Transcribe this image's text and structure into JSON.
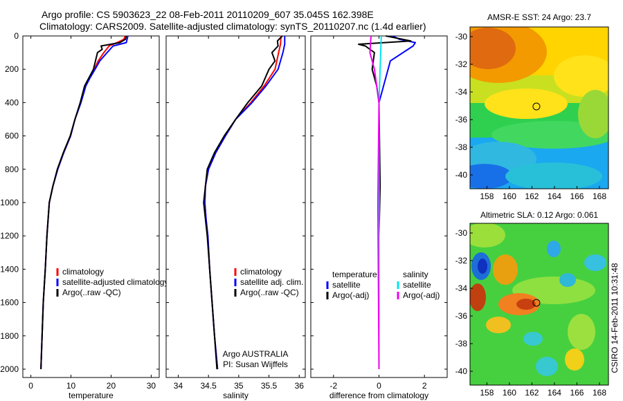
{
  "header": {
    "line1": "Argo profile: CS 5903623_22 08-Feb-2011 20110209_607 35.045S 162.398E",
    "line2": "Climatology: CARS2009. Satellite-adjusted climatology: synTS_20110207.nc (1.4d earlier)"
  },
  "side_label": "CSIRO 14-Feb-2011 10:31:48",
  "colors": {
    "climatology": "#ff0000",
    "satellite": "#0000ff",
    "argo": "#000000",
    "satellite_salinity": "#00e5ee",
    "argo_salinity_adj": "#ee00ee"
  },
  "chart_data": [
    {
      "type": "line",
      "xlabel": "temperature",
      "xlim": [
        -2,
        32
      ],
      "ylim": [
        0,
        2050
      ],
      "y_inverted": true,
      "xticks": [
        0,
        10,
        20,
        30
      ],
      "yticks": [
        0,
        200,
        400,
        600,
        800,
        1000,
        1200,
        1400,
        1600,
        1800,
        2000
      ],
      "series": [
        {
          "name": "climatology",
          "color": "#ff0000",
          "points": [
            [
              23.5,
              0
            ],
            [
              23.2,
              20
            ],
            [
              21.5,
              40
            ],
            [
              19.5,
              60
            ],
            [
              18.2,
              100
            ],
            [
              16.8,
              150
            ],
            [
              15.8,
              200
            ],
            [
              14.6,
              250
            ],
            [
              13.6,
              300
            ],
            [
              12.4,
              400
            ],
            [
              11.0,
              500
            ],
            [
              9.9,
              600
            ],
            [
              8.2,
              700
            ],
            [
              6.7,
              800
            ],
            [
              5.5,
              900
            ],
            [
              4.6,
              1000
            ],
            [
              4.0,
              1200
            ],
            [
              3.6,
              1400
            ],
            [
              3.1,
              1600
            ],
            [
              2.8,
              1800
            ],
            [
              2.5,
              2000
            ]
          ]
        },
        {
          "name": "satellite-adjusted climatology",
          "color": "#0000ff",
          "points": [
            [
              24.2,
              0
            ],
            [
              24.0,
              20
            ],
            [
              23.8,
              40
            ],
            [
              20.5,
              60
            ],
            [
              19.0,
              100
            ],
            [
              17.2,
              150
            ],
            [
              16.0,
              200
            ],
            [
              14.8,
              250
            ],
            [
              13.7,
              300
            ],
            [
              12.5,
              400
            ],
            [
              11.0,
              500
            ],
            [
              9.9,
              600
            ],
            [
              8.2,
              700
            ],
            [
              6.7,
              800
            ],
            [
              5.5,
              900
            ],
            [
              4.6,
              1000
            ],
            [
              4.0,
              1200
            ],
            [
              3.6,
              1400
            ],
            [
              3.1,
              1600
            ],
            [
              2.8,
              1800
            ],
            [
              2.5,
              2000
            ]
          ]
        },
        {
          "name": "Argo(..raw -QC)",
          "color": "#000000",
          "points": [
            [
              23.8,
              0
            ],
            [
              23.6,
              20
            ],
            [
              22.2,
              40
            ],
            [
              17.5,
              60
            ],
            [
              17.8,
              80
            ],
            [
              16.6,
              100
            ],
            [
              15.6,
              200
            ],
            [
              14.5,
              250
            ],
            [
              13.4,
              300
            ],
            [
              12.3,
              400
            ],
            [
              11.0,
              500
            ],
            [
              9.8,
              600
            ],
            [
              8.1,
              700
            ],
            [
              6.6,
              800
            ],
            [
              5.5,
              900
            ],
            [
              4.6,
              1000
            ],
            [
              4.0,
              1200
            ],
            [
              3.6,
              1400
            ],
            [
              3.1,
              1600
            ],
            [
              2.8,
              1800
            ],
            [
              2.5,
              2000
            ]
          ]
        }
      ],
      "legend": {
        "placement": "lower-right",
        "entries": [
          {
            "label": "climatology",
            "color": "#ff0000"
          },
          {
            "label": "satellite-adjusted climatology",
            "color": "#0000ff"
          },
          {
            "label": "Argo(..raw -QC)",
            "color": "#000000"
          }
        ]
      }
    },
    {
      "type": "line",
      "xlabel": "salinity",
      "xlim": [
        33.8,
        36.1
      ],
      "ylim": [
        0,
        2050
      ],
      "y_inverted": true,
      "xticks": [
        34,
        34.5,
        35,
        35.5,
        36
      ],
      "series": [
        {
          "name": "climatology",
          "color": "#ff0000",
          "points": [
            [
              35.7,
              0
            ],
            [
              35.69,
              50
            ],
            [
              35.66,
              100
            ],
            [
              35.6,
              200
            ],
            [
              35.42,
              300
            ],
            [
              35.2,
              400
            ],
            [
              34.95,
              500
            ],
            [
              34.78,
              600
            ],
            [
              34.62,
              700
            ],
            [
              34.5,
              800
            ],
            [
              34.45,
              900
            ],
            [
              34.44,
              1000
            ],
            [
              34.46,
              1100
            ],
            [
              34.49,
              1200
            ],
            [
              34.52,
              1400
            ],
            [
              34.56,
              1600
            ],
            [
              34.6,
              1800
            ],
            [
              34.65,
              2000
            ]
          ]
        },
        {
          "name": "satellite adj. clim.",
          "color": "#0000ff",
          "points": [
            [
              35.76,
              0
            ],
            [
              35.76,
              50
            ],
            [
              35.73,
              100
            ],
            [
              35.65,
              200
            ],
            [
              35.45,
              300
            ],
            [
              35.22,
              400
            ],
            [
              34.95,
              500
            ],
            [
              34.78,
              600
            ],
            [
              34.62,
              700
            ],
            [
              34.5,
              800
            ],
            [
              34.45,
              900
            ],
            [
              34.44,
              1000
            ],
            [
              34.46,
              1100
            ],
            [
              34.49,
              1200
            ],
            [
              34.52,
              1400
            ],
            [
              34.56,
              1600
            ],
            [
              34.6,
              1800
            ],
            [
              34.65,
              2000
            ]
          ]
        },
        {
          "name": "Argo(..raw -QC)",
          "color": "#000000",
          "points": [
            [
              35.72,
              0
            ],
            [
              35.64,
              30
            ],
            [
              35.65,
              60
            ],
            [
              35.55,
              100
            ],
            [
              35.6,
              150
            ],
            [
              35.5,
              200
            ],
            [
              35.38,
              300
            ],
            [
              35.15,
              400
            ],
            [
              34.95,
              500
            ],
            [
              34.76,
              600
            ],
            [
              34.6,
              700
            ],
            [
              34.48,
              800
            ],
            [
              34.45,
              900
            ],
            [
              34.42,
              1000
            ],
            [
              34.45,
              1100
            ],
            [
              34.48,
              1200
            ],
            [
              34.52,
              1400
            ],
            [
              34.56,
              1600
            ],
            [
              34.6,
              1800
            ],
            [
              34.64,
              2000
            ]
          ]
        }
      ],
      "legend": {
        "placement": "lower-right",
        "entries": [
          {
            "label": "climatology",
            "color": "#ff0000"
          },
          {
            "label": "satellite adj. clim.",
            "color": "#0000ff"
          },
          {
            "label": "Argo(..raw -QC)",
            "color": "#000000"
          }
        ]
      },
      "annotation": {
        "line1": "Argo AUSTRALIA",
        "line2": "PI: Susan Wijffels"
      }
    },
    {
      "type": "line",
      "xlabel": "difference from climatology",
      "xlim": [
        -3,
        3
      ],
      "ylim": [
        0,
        2050
      ],
      "y_inverted": true,
      "xticks": [
        -2,
        0,
        2
      ],
      "series": [
        {
          "name": "satellite",
          "group": "temperature",
          "color": "#0000ff",
          "points": [
            [
              0.6,
              0
            ],
            [
              0.9,
              20
            ],
            [
              1.6,
              40
            ],
            [
              1.5,
              60
            ],
            [
              0.5,
              150
            ],
            [
              0.2,
              300
            ],
            [
              0,
              400
            ],
            [
              0,
              2000
            ]
          ]
        },
        {
          "name": "Argo(-adj)",
          "group": "temperature",
          "color": "#000000",
          "points": [
            [
              0.3,
              0
            ],
            [
              1.4,
              30
            ],
            [
              -0.9,
              50
            ],
            [
              -0.6,
              60
            ],
            [
              -0.2,
              100
            ],
            [
              -0.3,
              200
            ],
            [
              -0.1,
              300
            ],
            [
              0,
              400
            ],
            [
              0.05,
              900
            ],
            [
              0,
              1200
            ],
            [
              0,
              2000
            ]
          ]
        },
        {
          "name": "satellite",
          "group": "salinity",
          "color": "#00e5ee",
          "points": [
            [
              0.1,
              0
            ],
            [
              0.05,
              200
            ],
            [
              0,
              400
            ],
            [
              0,
              2000
            ]
          ]
        },
        {
          "name": "Argo(-adj)",
          "group": "salinity",
          "color": "#ee00ee",
          "points": [
            [
              -0.35,
              0
            ],
            [
              -0.4,
              100
            ],
            [
              -0.2,
              200
            ],
            [
              0,
              400
            ],
            [
              -0.05,
              1000
            ],
            [
              0,
              2000
            ]
          ]
        }
      ],
      "legend": {
        "placement": "lower-center",
        "groups": [
          {
            "title": "temperature",
            "entries": [
              {
                "label": "satellite",
                "color": "#0000ff"
              },
              {
                "label": "Argo(-adj)",
                "color": "#000000"
              }
            ]
          },
          {
            "title": "salinity",
            "entries": [
              {
                "label": "satellite",
                "color": "#00e5ee"
              },
              {
                "label": "Argo(-adj)",
                "color": "#ee00ee"
              }
            ]
          }
        ]
      }
    },
    {
      "type": "heatmap",
      "title": "AMSR-E SST: 24 Argo: 23.7",
      "xticks": [
        158,
        160,
        162,
        164,
        166,
        168
      ],
      "yticks": [
        -30,
        -32,
        -34,
        -36,
        -38,
        -40
      ],
      "xlim": [
        156.5,
        168.8
      ],
      "ylim": [
        -41,
        -29.3
      ],
      "marker": {
        "lon": 162.4,
        "lat": -35.05
      }
    },
    {
      "type": "heatmap",
      "title": "Altimetric SLA: 0.12 Argo: 0.061",
      "xticks": [
        158,
        160,
        162,
        164,
        166,
        168
      ],
      "yticks": [
        -30,
        -32,
        -34,
        -36,
        -38,
        -40
      ],
      "xlim": [
        156.5,
        168.8
      ],
      "ylim": [
        -41,
        -29.3
      ],
      "marker": {
        "lon": 162.4,
        "lat": -35.05
      }
    }
  ]
}
